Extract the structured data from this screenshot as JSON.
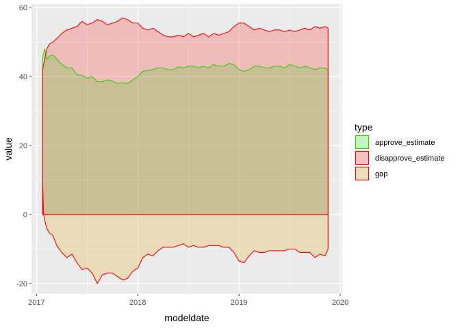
{
  "chart_data": {
    "type": "area",
    "title": "",
    "xlabel": "modeldate",
    "ylabel": "value",
    "xlim": [
      2016.95,
      2020.02
    ],
    "ylim": [
      -23,
      61
    ],
    "x_ticks": [
      2017,
      2018,
      2019,
      2020
    ],
    "x_tick_labels": [
      "2017",
      "2018",
      "2019",
      "2020"
    ],
    "y_ticks": [
      -20,
      0,
      20,
      40,
      60
    ],
    "y_tick_labels": [
      "-20",
      "0",
      "20",
      "40",
      "60"
    ],
    "grid": true,
    "legend": {
      "title": "type",
      "position": "right",
      "entries": [
        "approve_estimate",
        "disapprove_estimate",
        "gap"
      ]
    },
    "series": [
      {
        "name": "approve_estimate",
        "line_color": "#33cc00",
        "fill_color": "#00ff00",
        "fill_opacity": 0.2,
        "x": [
          2017.06,
          2017.08,
          2017.1,
          2017.13,
          2017.16,
          2017.2,
          2017.25,
          2017.3,
          2017.35,
          2017.4,
          2017.45,
          2017.5,
          2017.55,
          2017.6,
          2017.65,
          2017.7,
          2017.75,
          2017.8,
          2017.85,
          2017.9,
          2017.95,
          2018.0,
          2018.05,
          2018.1,
          2018.15,
          2018.2,
          2018.25,
          2018.3,
          2018.35,
          2018.4,
          2018.45,
          2018.5,
          2018.55,
          2018.6,
          2018.65,
          2018.7,
          2018.75,
          2018.8,
          2018.85,
          2018.9,
          2018.95,
          2019.0,
          2019.05,
          2019.1,
          2019.15,
          2019.2,
          2019.25,
          2019.3,
          2019.35,
          2019.4,
          2019.45,
          2019.5,
          2019.55,
          2019.6,
          2019.65,
          2019.7,
          2019.75,
          2019.8,
          2019.85,
          2019.88
        ],
        "values": [
          45.5,
          48.0,
          45.0,
          46.0,
          46.3,
          45.0,
          43.5,
          42.5,
          42.5,
          40.5,
          40.3,
          39.5,
          40.0,
          38.5,
          38.5,
          39.0,
          38.7,
          38.0,
          38.2,
          38.0,
          39.0,
          40.0,
          41.5,
          41.8,
          42.0,
          42.5,
          42.5,
          42.0,
          42.0,
          42.8,
          42.5,
          43.0,
          43.0,
          42.5,
          43.0,
          42.5,
          43.5,
          43.0,
          43.0,
          43.8,
          43.5,
          42.0,
          41.5,
          42.0,
          43.0,
          43.0,
          42.5,
          42.5,
          43.0,
          43.0,
          42.5,
          43.5,
          43.0,
          42.5,
          43.0,
          42.5,
          42.0,
          42.5,
          42.5,
          42.0
        ]
      },
      {
        "name": "disapprove_estimate",
        "line_color": "#ff0000",
        "fill_color": "#ff0000",
        "fill_opacity": 0.2,
        "x": [
          2017.06,
          2017.08,
          2017.1,
          2017.13,
          2017.16,
          2017.2,
          2017.25,
          2017.3,
          2017.35,
          2017.4,
          2017.45,
          2017.5,
          2017.55,
          2017.6,
          2017.65,
          2017.7,
          2017.75,
          2017.8,
          2017.85,
          2017.9,
          2017.95,
          2018.0,
          2018.05,
          2018.1,
          2018.15,
          2018.2,
          2018.25,
          2018.3,
          2018.35,
          2018.4,
          2018.45,
          2018.5,
          2018.55,
          2018.6,
          2018.65,
          2018.7,
          2018.75,
          2018.8,
          2018.85,
          2018.9,
          2018.95,
          2019.0,
          2019.05,
          2019.1,
          2019.15,
          2019.2,
          2019.25,
          2019.3,
          2019.35,
          2019.4,
          2019.45,
          2019.5,
          2019.55,
          2019.6,
          2019.65,
          2019.7,
          2019.75,
          2019.8,
          2019.85,
          2019.88
        ],
        "values": [
          42.0,
          45.0,
          48.0,
          49.5,
          50.0,
          51.0,
          52.5,
          53.5,
          54.0,
          54.5,
          56.0,
          55.0,
          55.5,
          56.5,
          56.0,
          55.0,
          55.5,
          56.0,
          57.0,
          56.5,
          55.5,
          55.5,
          54.0,
          53.5,
          54.0,
          53.0,
          52.0,
          51.5,
          51.5,
          52.0,
          51.5,
          52.5,
          51.5,
          52.0,
          52.5,
          51.5,
          52.5,
          52.0,
          52.5,
          53.0,
          54.5,
          55.5,
          55.5,
          54.5,
          53.5,
          54.0,
          53.5,
          53.0,
          53.5,
          53.5,
          53.0,
          53.5,
          53.0,
          53.5,
          54.0,
          53.5,
          54.5,
          54.0,
          54.5,
          54.0
        ]
      },
      {
        "name": "gap",
        "line_color": "#ff0000",
        "fill_color": "#e6c36b",
        "fill_opacity": 0.4,
        "x": [
          2017.06,
          2017.07,
          2017.08,
          2017.1,
          2017.13,
          2017.16,
          2017.2,
          2017.25,
          2017.3,
          2017.35,
          2017.4,
          2017.45,
          2017.5,
          2017.55,
          2017.6,
          2017.65,
          2017.7,
          2017.75,
          2017.8,
          2017.85,
          2017.9,
          2017.95,
          2018.0,
          2018.05,
          2018.1,
          2018.15,
          2018.2,
          2018.25,
          2018.3,
          2018.35,
          2018.4,
          2018.45,
          2018.5,
          2018.55,
          2018.6,
          2018.65,
          2018.7,
          2018.75,
          2018.8,
          2018.85,
          2018.9,
          2018.95,
          2019.0,
          2019.05,
          2019.1,
          2019.15,
          2019.2,
          2019.25,
          2019.3,
          2019.35,
          2019.4,
          2019.45,
          2019.5,
          2019.55,
          2019.6,
          2019.65,
          2019.7,
          2019.75,
          2019.8,
          2019.85,
          2019.88
        ],
        "values": [
          9.0,
          0.0,
          -1.5,
          -4.0,
          -5.5,
          -6.0,
          -9.0,
          -11.0,
          -12.5,
          -11.5,
          -14.0,
          -16.0,
          -15.5,
          -17.0,
          -20.0,
          -17.5,
          -17.0,
          -17.0,
          -18.0,
          -19.0,
          -18.5,
          -16.5,
          -15.5,
          -12.5,
          -11.5,
          -12.0,
          -10.5,
          -9.5,
          -9.5,
          -9.5,
          -9.0,
          -8.5,
          -9.5,
          -9.0,
          -9.5,
          -9.5,
          -9.0,
          -9.0,
          -9.0,
          -9.5,
          -9.5,
          -11.0,
          -13.5,
          -14.0,
          -12.0,
          -10.5,
          -11.0,
          -11.0,
          -10.5,
          -10.5,
          -10.5,
          -10.5,
          -10.0,
          -10.0,
          -11.0,
          -11.0,
          -11.0,
          -12.5,
          -11.5,
          -12.0,
          -10.0
        ]
      }
    ]
  }
}
